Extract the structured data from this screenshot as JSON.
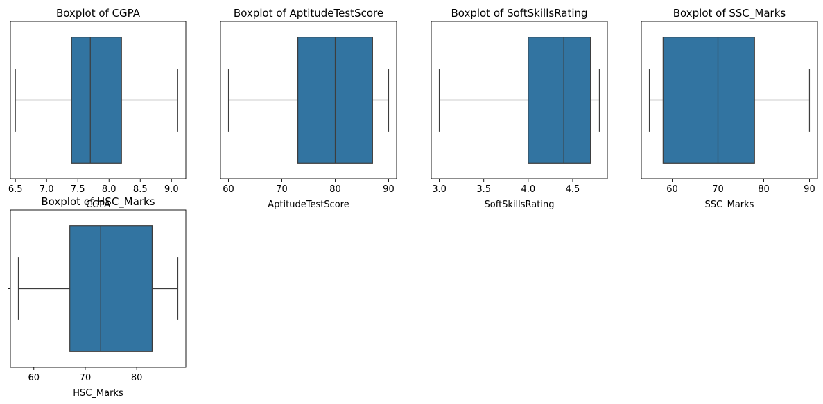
{
  "chart_data": [
    {
      "type": "boxplot",
      "title": "Boxplot of CGPA",
      "xlabel": "CGPA",
      "xlim": [
        6.42,
        9.23
      ],
      "xticks": [
        6.5,
        7.0,
        7.5,
        8.0,
        8.5,
        9.0
      ],
      "xtick_labels": [
        "6.5",
        "7.0",
        "7.5",
        "8.0",
        "8.5",
        "9.0"
      ],
      "stats": {
        "whisker_low": 6.5,
        "q1": 7.4,
        "median": 7.7,
        "q3": 8.2,
        "whisker_high": 9.1
      },
      "box_color": "#3274a1"
    },
    {
      "type": "boxplot",
      "title": "Boxplot of AptitudeTestScore",
      "xlabel": "AptitudeTestScore",
      "xlim": [
        58.5,
        91.5
      ],
      "xticks": [
        60,
        70,
        80,
        90
      ],
      "xtick_labels": [
        "60",
        "70",
        "80",
        "90"
      ],
      "stats": {
        "whisker_low": 60,
        "q1": 73,
        "median": 80,
        "q3": 87,
        "whisker_high": 90
      },
      "box_color": "#3274a1"
    },
    {
      "type": "boxplot",
      "title": "Boxplot of SoftSkillsRating",
      "xlabel": "SoftSkillsRating",
      "xlim": [
        2.91,
        4.89
      ],
      "xticks": [
        3.0,
        3.5,
        4.0,
        4.5
      ],
      "xtick_labels": [
        "3.0",
        "3.5",
        "4.0",
        "4.5"
      ],
      "stats": {
        "whisker_low": 3.0,
        "q1": 4.0,
        "median": 4.4,
        "q3": 4.7,
        "whisker_high": 4.8
      },
      "box_color": "#3274a1"
    },
    {
      "type": "boxplot",
      "title": "Boxplot of SSC_Marks",
      "xlabel": "SSC_Marks",
      "xlim": [
        53.25,
        91.75
      ],
      "xticks": [
        60,
        70,
        80,
        90
      ],
      "xtick_labels": [
        "60",
        "70",
        "80",
        "90"
      ],
      "stats": {
        "whisker_low": 55,
        "q1": 58,
        "median": 70,
        "q3": 78,
        "whisker_high": 90
      },
      "box_color": "#3274a1"
    },
    {
      "type": "boxplot",
      "title": "Boxplot of HSC_Marks",
      "xlabel": "HSC_Marks",
      "xlim": [
        55.45,
        89.55
      ],
      "xticks": [
        60,
        70,
        80
      ],
      "xtick_labels": [
        "60",
        "70",
        "80"
      ],
      "stats": {
        "whisker_low": 57,
        "q1": 67,
        "median": 73,
        "q3": 83,
        "whisker_high": 88
      },
      "box_color": "#3274a1"
    }
  ]
}
